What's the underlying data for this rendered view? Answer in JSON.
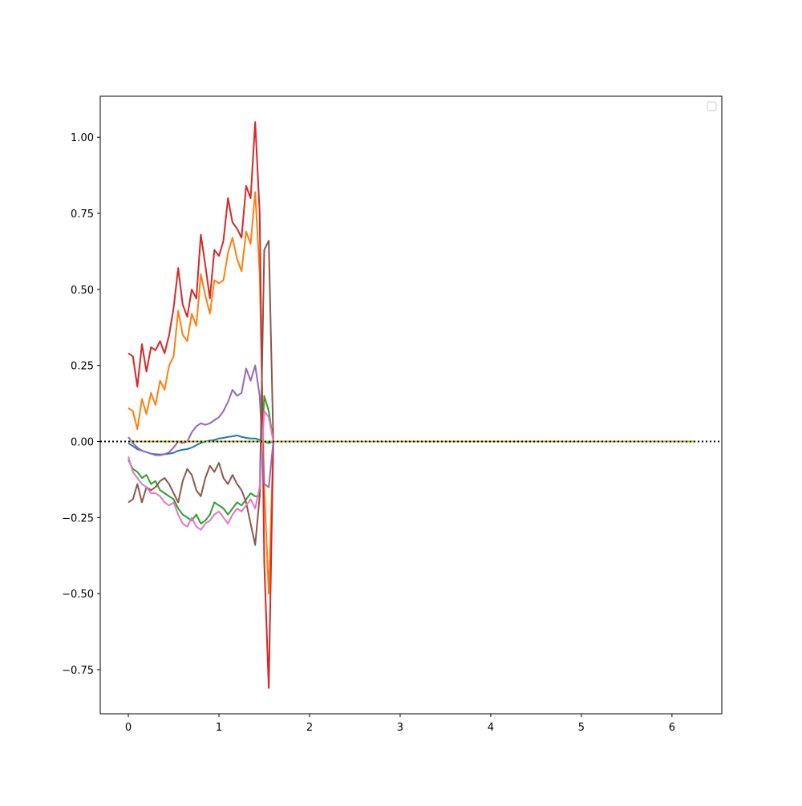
{
  "chart_data": {
    "type": "line",
    "title": "",
    "xlabel": "",
    "ylabel": "",
    "xlim": [
      -0.31,
      6.55
    ],
    "ylim": [
      -0.895,
      1.135
    ],
    "x_ticks": [
      0,
      1,
      2,
      3,
      4,
      5,
      6
    ],
    "y_ticks": [
      -0.75,
      -0.5,
      -0.25,
      0.0,
      0.25,
      0.5,
      0.75,
      1.0
    ],
    "x_tick_labels": [
      "0",
      "1",
      "2",
      "3",
      "4",
      "5",
      "6"
    ],
    "y_tick_labels": [
      "−0.75",
      "−0.50",
      "−0.25",
      "0.00",
      "0.25",
      "0.50",
      "0.75",
      "1.00"
    ],
    "grid": false,
    "legend": {
      "placement": "upper right",
      "entries": []
    },
    "reference_line": {
      "y": 0.0,
      "style": "dotted",
      "color": "#000000"
    },
    "x": [
      0.0,
      0.05,
      0.1,
      0.15,
      0.2,
      0.25,
      0.3,
      0.35,
      0.4,
      0.45,
      0.5,
      0.55,
      0.6,
      0.65,
      0.7,
      0.75,
      0.8,
      0.85,
      0.9,
      0.95,
      1.0,
      1.05,
      1.1,
      1.15,
      1.2,
      1.25,
      1.3,
      1.35,
      1.4,
      1.45,
      1.5,
      1.55,
      1.6
    ],
    "flat_range": {
      "x_start": 1.6,
      "x_end": 6.25
    },
    "series": [
      {
        "color": "#1f77b4",
        "values": [
          -0.005,
          -0.015,
          -0.025,
          -0.03,
          -0.035,
          -0.04,
          -0.042,
          -0.043,
          -0.042,
          -0.04,
          -0.037,
          -0.03,
          -0.027,
          -0.025,
          -0.02,
          -0.012,
          -0.005,
          0.0,
          0.003,
          0.005,
          0.01,
          0.012,
          0.015,
          0.017,
          0.02,
          0.015,
          0.012,
          0.01,
          0.01,
          0.005,
          0.0,
          -0.005,
          0.0
        ]
      },
      {
        "color": "#ff7f0e",
        "values": [
          0.11,
          0.1,
          0.04,
          0.14,
          0.09,
          0.16,
          0.12,
          0.2,
          0.17,
          0.25,
          0.28,
          0.43,
          0.35,
          0.33,
          0.42,
          0.38,
          0.55,
          0.48,
          0.42,
          0.53,
          0.52,
          0.53,
          0.62,
          0.67,
          0.6,
          0.56,
          0.69,
          0.65,
          0.82,
          0.55,
          -0.15,
          -0.5,
          0.0
        ]
      },
      {
        "color": "#2ca02c",
        "values": [
          -0.06,
          -0.09,
          -0.1,
          -0.12,
          -0.11,
          -0.14,
          -0.13,
          -0.16,
          -0.17,
          -0.18,
          -0.19,
          -0.22,
          -0.24,
          -0.25,
          -0.26,
          -0.24,
          -0.27,
          -0.26,
          -0.24,
          -0.2,
          -0.21,
          -0.22,
          -0.24,
          -0.22,
          -0.2,
          -0.21,
          -0.19,
          -0.17,
          -0.18,
          -0.18,
          0.15,
          0.1,
          0.0
        ]
      },
      {
        "color": "#d62728",
        "values": [
          0.29,
          0.28,
          0.18,
          0.32,
          0.23,
          0.31,
          0.3,
          0.33,
          0.29,
          0.35,
          0.44,
          0.57,
          0.45,
          0.41,
          0.5,
          0.47,
          0.68,
          0.58,
          0.47,
          0.63,
          0.61,
          0.66,
          0.8,
          0.72,
          0.7,
          0.67,
          0.84,
          0.8,
          1.05,
          0.75,
          -0.4,
          -0.81,
          0.0
        ]
      },
      {
        "color": "#9467bd",
        "values": [
          0.015,
          -0.005,
          -0.02,
          -0.03,
          -0.035,
          -0.04,
          -0.045,
          -0.045,
          -0.042,
          -0.035,
          -0.02,
          0.0,
          -0.005,
          0.0,
          0.03,
          0.05,
          0.06,
          0.055,
          0.06,
          0.07,
          0.08,
          0.1,
          0.13,
          0.17,
          0.15,
          0.16,
          0.24,
          0.2,
          0.25,
          0.15,
          -0.14,
          -0.15,
          0.0
        ]
      },
      {
        "color": "#8c564b",
        "values": [
          -0.2,
          -0.19,
          -0.14,
          -0.2,
          -0.15,
          -0.16,
          -0.15,
          -0.13,
          -0.12,
          -0.14,
          -0.17,
          -0.2,
          -0.13,
          -0.09,
          -0.11,
          -0.16,
          -0.18,
          -0.12,
          -0.08,
          -0.1,
          -0.07,
          -0.12,
          -0.14,
          -0.11,
          -0.14,
          -0.16,
          -0.2,
          -0.27,
          -0.34,
          -0.18,
          0.63,
          0.66,
          0.0
        ]
      },
      {
        "color": "#e377c2",
        "values": [
          -0.05,
          -0.1,
          -0.12,
          -0.14,
          -0.15,
          -0.17,
          -0.17,
          -0.18,
          -0.2,
          -0.21,
          -0.2,
          -0.24,
          -0.27,
          -0.28,
          -0.25,
          -0.28,
          -0.29,
          -0.27,
          -0.26,
          -0.24,
          -0.23,
          -0.25,
          -0.27,
          -0.24,
          -0.22,
          -0.23,
          -0.21,
          -0.19,
          -0.22,
          -0.15,
          0.1,
          0.08,
          0.0
        ]
      },
      {
        "color": "#bcbd22",
        "values": [
          0.0,
          0.0,
          0.0,
          0.0,
          0.0,
          0.0,
          0.0,
          0.0,
          0.0,
          0.0,
          0.0,
          0.0,
          0.0,
          0.0,
          0.0,
          0.0,
          0.0,
          0.0,
          0.0,
          0.0,
          0.0,
          0.0,
          0.0,
          0.0,
          0.0,
          0.0,
          0.0,
          0.0,
          0.0,
          0.0,
          0.0,
          0.0,
          0.0
        ]
      }
    ]
  }
}
